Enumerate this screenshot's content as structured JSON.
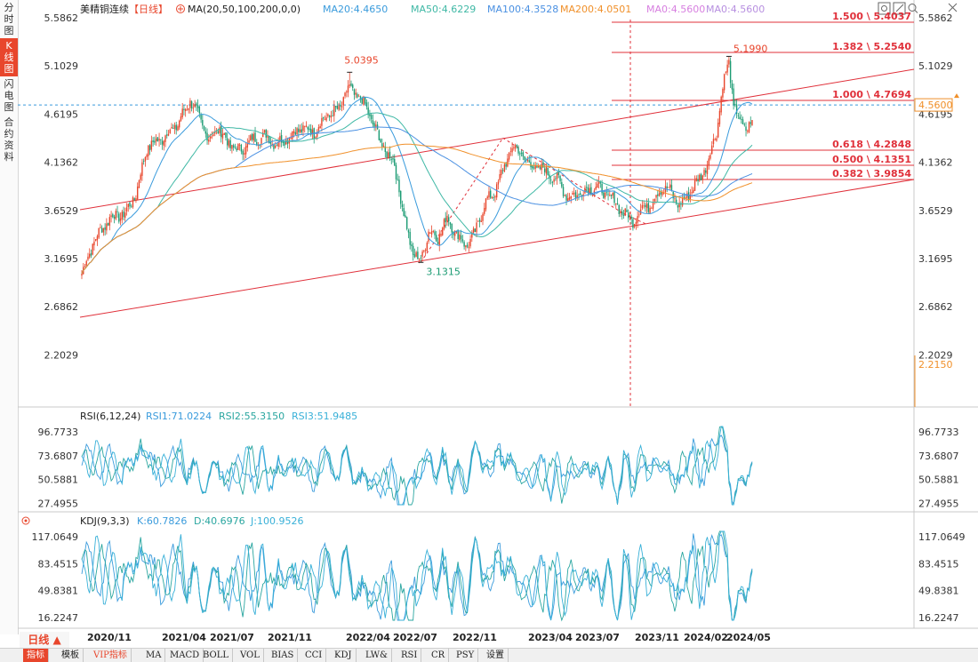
{
  "sidebar": {
    "tabs": [
      {
        "label": "分时图",
        "chars": [
          "分",
          "时",
          "图"
        ],
        "active": false
      },
      {
        "label": "K线图",
        "chars": [
          "K",
          "线",
          "图"
        ],
        "active": true
      },
      {
        "label": "闪电图",
        "chars": [
          "闪",
          "电",
          "图"
        ],
        "active": false
      },
      {
        "label": "合约资料",
        "chars": [
          "合",
          "约",
          "资",
          "料"
        ],
        "active": false
      }
    ]
  },
  "header": {
    "symbol": "美精铜连续",
    "period_tag": "【日线】",
    "ma_label": "MA(20,50,100,200,0,0)",
    "ma_values": [
      {
        "label": "MA20:4.4650",
        "color": "#3a9bdc"
      },
      {
        "label": "MA50:4.6229",
        "color": "#3fb8a5"
      },
      {
        "label": "MA100:4.3528",
        "color": "#4a90e2"
      },
      {
        "label": "MA200:4.0501",
        "color": "#f0902a"
      },
      {
        "label": "MA0:4.5600",
        "color": "#d77fe0"
      },
      {
        "label": "MA0:4.5600",
        "color": "#b78fe0"
      }
    ]
  },
  "window_controls": [
    "settings-icon",
    "popout-icon",
    "search-icon",
    "close-icon"
  ],
  "price_axis": {
    "ticks": [
      "5.5862",
      "5.1029",
      "4.6195",
      "4.1362",
      "3.6529",
      "3.1695",
      "2.6862",
      "2.2029"
    ],
    "current": "4.5600",
    "bottom_marker": "2.2150"
  },
  "annotations": {
    "high_2021": "5.0395",
    "low_2022": "3.1315",
    "high_2024": "5.1990"
  },
  "fib_levels": [
    {
      "label": "1.500 \\ 5.4037"
    },
    {
      "label": "1.382 \\ 5.2540"
    },
    {
      "label": "1.000 \\ 4.7694"
    },
    {
      "label": "0.618 \\ 4.2848"
    },
    {
      "label": "0.500 \\ 4.1351"
    },
    {
      "label": "0.382 \\ 3.9854"
    }
  ],
  "rsi": {
    "title": "RSI(6,12,24)",
    "values": [
      {
        "label": "RSI1:71.0224",
        "color": "#3a9bdc"
      },
      {
        "label": "RSI2:55.3150",
        "color": "#2aa6a0"
      },
      {
        "label": "RSI3:51.9485",
        "color": "#38b0d8"
      }
    ],
    "ticks": [
      "96.7733",
      "73.6807",
      "50.5881",
      "27.4955"
    ]
  },
  "kdj": {
    "title": "KDJ(9,3,3)",
    "values": [
      {
        "label": "K:60.7826",
        "color": "#3a9bdc"
      },
      {
        "label": "D:40.6976",
        "color": "#2aa6a0"
      },
      {
        "label": "J:100.9526",
        "color": "#38b0d8"
      }
    ],
    "ticks": [
      "117.0649",
      "83.4515",
      "49.8381",
      "16.2247"
    ]
  },
  "date_axis": [
    "2020/11",
    "2021/04",
    "2021/07",
    "2021/11",
    "2022/04",
    "2022/07",
    "2022/11",
    "2023/04",
    "2023/07",
    "2023/11",
    "2024/02",
    "2024/05"
  ],
  "period_selector": "日线",
  "toolbar": [
    "指标",
    "模板",
    "VIP指标",
    "MA",
    "MACD",
    "BOLL",
    "VOL",
    "BIAS",
    "CCI",
    "KDJ",
    "LW&",
    "RSI",
    "CR",
    "PSY",
    "设置"
  ],
  "colors": {
    "up": "#e8462c",
    "down": "#1b9b73",
    "channel": "#e0303a",
    "accent": "#e8462c"
  },
  "chart_data": {
    "type": "candlestick",
    "anchors": [
      [
        0,
        3.02
      ],
      [
        8,
        3.35
      ],
      [
        18,
        3.58
      ],
      [
        28,
        3.62
      ],
      [
        35,
        3.82
      ],
      [
        42,
        4.28
      ],
      [
        52,
        4.38
      ],
      [
        62,
        4.52
      ],
      [
        70,
        4.76
      ],
      [
        76,
        4.58
      ],
      [
        82,
        4.36
      ],
      [
        88,
        4.48
      ],
      [
        95,
        4.32
      ],
      [
        102,
        4.25
      ],
      [
        110,
        4.36
      ],
      [
        118,
        4.4
      ],
      [
        126,
        4.32
      ],
      [
        134,
        4.4
      ],
      [
        142,
        4.48
      ],
      [
        150,
        4.44
      ],
      [
        158,
        4.6
      ],
      [
        166,
        4.66
      ],
      [
        172,
        4.88
      ],
      [
        178,
        4.8
      ],
      [
        184,
        4.68
      ],
      [
        190,
        4.45
      ],
      [
        196,
        4.25
      ],
      [
        202,
        4.12
      ],
      [
        208,
        3.6
      ],
      [
        214,
        3.22
      ],
      [
        219,
        3.14
      ],
      [
        224,
        3.45
      ],
      [
        230,
        3.38
      ],
      [
        236,
        3.58
      ],
      [
        242,
        3.42
      ],
      [
        248,
        3.3
      ],
      [
        254,
        3.42
      ],
      [
        260,
        3.72
      ],
      [
        266,
        3.82
      ],
      [
        272,
        4.05
      ],
      [
        278,
        4.3
      ],
      [
        284,
        4.22
      ],
      [
        290,
        4.1
      ],
      [
        296,
        4.08
      ],
      [
        302,
        4.02
      ],
      [
        308,
        3.95
      ],
      [
        314,
        3.78
      ],
      [
        320,
        3.82
      ],
      [
        326,
        3.86
      ],
      [
        332,
        3.9
      ],
      [
        338,
        3.82
      ],
      [
        344,
        3.75
      ],
      [
        350,
        3.62
      ],
      [
        356,
        3.55
      ],
      [
        362,
        3.68
      ],
      [
        368,
        3.72
      ],
      [
        374,
        3.88
      ],
      [
        380,
        3.85
      ],
      [
        386,
        3.7
      ],
      [
        392,
        3.82
      ],
      [
        398,
        3.95
      ],
      [
        404,
        4.12
      ],
      [
        410,
        4.45
      ],
      [
        414,
        4.9
      ],
      [
        418,
        5.15
      ],
      [
        421,
        4.7
      ],
      [
        426,
        4.52
      ],
      [
        430,
        4.48
      ],
      [
        433,
        4.56
      ]
    ]
  }
}
